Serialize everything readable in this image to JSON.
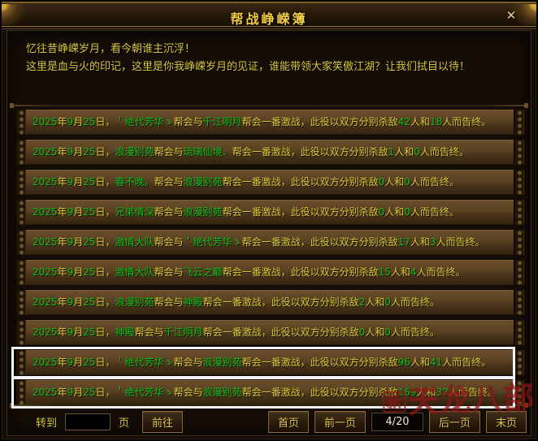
{
  "window": {
    "title": "帮战峥嵘簿",
    "close_glyph": "✕"
  },
  "header": {
    "line1": "忆往昔峥嵘岁月，看今朝谁主沉浮！",
    "line2": "这里是血与火的印记，这里是你我峥嵘岁月的见证，谁能带领大家笑傲江湖？让我们拭目以待！"
  },
  "record_template": {
    "year_suffix": "年",
    "month_suffix": "月",
    "day_suffix": "日，",
    "between": "帮会与",
    "middle": "帮会一番激战，此役以双方分别杀敌",
    "and": "人和",
    "end": "人而告终。"
  },
  "records": [
    {
      "year": "2025",
      "month": "9",
      "day": "25",
      "guild1": "＇绝代芳华ゝ",
      "guild2": "千江明月",
      "kills1": "42",
      "kills2": "18",
      "highlighted": false
    },
    {
      "year": "2025",
      "month": "9",
      "day": "25",
      "guild1": "浪漫别苑",
      "guild2": "琉璃仙境．",
      "kills1": "1",
      "kills2": "0",
      "highlighted": false
    },
    {
      "year": "2025",
      "month": "9",
      "day": "25",
      "guild1": "春不晚。",
      "guild2": "浪漫别苑",
      "kills1": "0",
      "kills2": "0",
      "highlighted": false
    },
    {
      "year": "2025",
      "month": "9",
      "day": "25",
      "guild1": "兄弟情深",
      "guild2": "浪漫别苑",
      "kills1": "0",
      "kills2": "0",
      "highlighted": false
    },
    {
      "year": "2025",
      "month": "9",
      "day": "25",
      "guild1": "激情大队",
      "guild2": "＇绝代芳华ゝ",
      "kills1": "17",
      "kills2": "3",
      "highlighted": false
    },
    {
      "year": "2025",
      "month": "9",
      "day": "25",
      "guild1": "激情大队",
      "guild2": "飞云之巅",
      "kills1": "15",
      "kills2": "4",
      "highlighted": false
    },
    {
      "year": "2025",
      "month": "9",
      "day": "25",
      "guild1": "浪漫别苑",
      "guild2": "神殿",
      "kills1": "2",
      "kills2": "0",
      "highlighted": false
    },
    {
      "year": "2025",
      "month": "9",
      "day": "25",
      "guild1": "神殿",
      "guild2": "千江明月",
      "kills1": "0",
      "kills2": "0",
      "highlighted": false
    },
    {
      "year": "2025",
      "month": "9",
      "day": "25",
      "guild1": "＇绝代芳华ゝ",
      "guild2": "浪漫别苑",
      "kills1": "96",
      "kills2": "41",
      "highlighted": true
    },
    {
      "year": "2025",
      "month": "9",
      "day": "25",
      "guild1": "＇绝代芳华ゝ",
      "guild2": "浪漫别苑",
      "kills1": "169",
      "kills2": "32",
      "highlighted": true
    }
  ],
  "pagination": {
    "goto_label": "转到",
    "page_suffix": "页",
    "go_button": "前往",
    "input_value": "",
    "first": "首页",
    "prev": "前一页",
    "page_indicator": "4/20",
    "next": "后一页",
    "last": "末页"
  },
  "watermark": {
    "small": "新",
    "text": "天龙八部"
  },
  "colors": {
    "green": "#0fbe17",
    "yellow": "#d8c83a",
    "gold": "#f3cd44",
    "button_gold": "#e9ca52",
    "white_highlight": "#f5f5f5",
    "red_watermark": "#8c1616",
    "indicator_text": "#f2e9d4"
  }
}
